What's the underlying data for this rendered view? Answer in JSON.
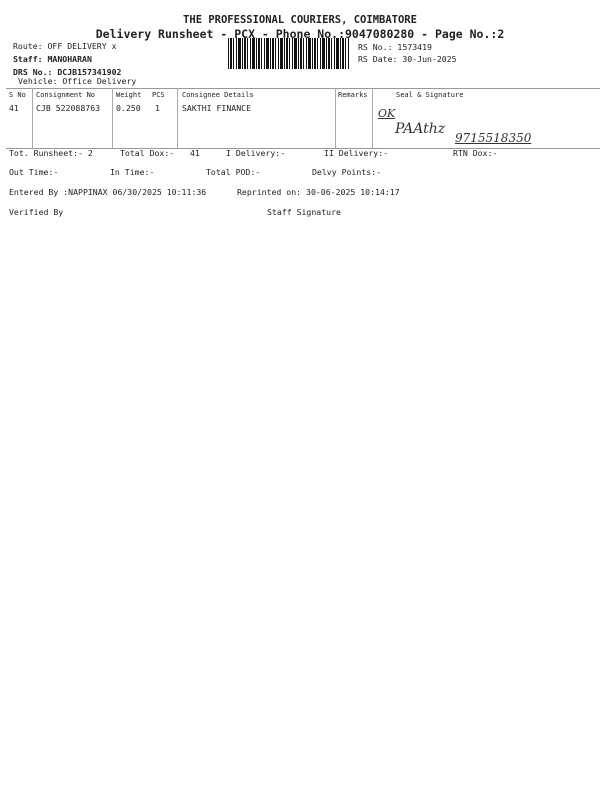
{
  "header": {
    "company": "THE PROFESSIONAL COURIERS, COIMBATORE",
    "subtitle": "Delivery Runsheet - PCX - Phone No.:9047080280 - Page No.:2"
  },
  "info": {
    "route": "Route: OFF DELIVERY x",
    "staff": "Staff: MANOHARAN",
    "drs": "DRS No.: DCJB157341902",
    "vehicle": "Vehicle: Office Delivery",
    "rs_no": "RS No.: 1573419",
    "rs_date": "RS Date: 30-Jun-2025"
  },
  "table": {
    "headers": [
      "S No",
      "Consignment No",
      "Weight",
      "PCS",
      "Consignee Details",
      "Remarks",
      "Seal & Signature"
    ],
    "rows": [
      {
        "sno": "41",
        "consignment": "CJB 522088763",
        "weight": "0.250",
        "pcs": "1",
        "consignee": "SAKTHI FINANCE",
        "remarks": "",
        "handwritten": {
          "ok": "OK",
          "signature": "PAAthz",
          "phone": "9715518350"
        }
      }
    ]
  },
  "totals": {
    "tot_runsheet": "Tot. Runsheet:- 2",
    "total_dox": "Total Dox:-",
    "total_dox_value": "41",
    "i_delivery": "I Delivery:-",
    "ii_delivery": "II Delivery:-",
    "rtn_dox": "RTN Dox:-",
    "out_time": "Out Time:-",
    "in_time": "In Time:-",
    "total_pod": "Total POD:-",
    "delvy_points": "Delvy Points:-"
  },
  "footer": {
    "entered_by": "Entered By :NAPPINAX 06/30/2025 10:11:36",
    "reprinted_on": "Reprinted on: 30-06-2025 10:14:17",
    "verified_by": "Verified By",
    "staff_signature": "Staff Signature"
  }
}
